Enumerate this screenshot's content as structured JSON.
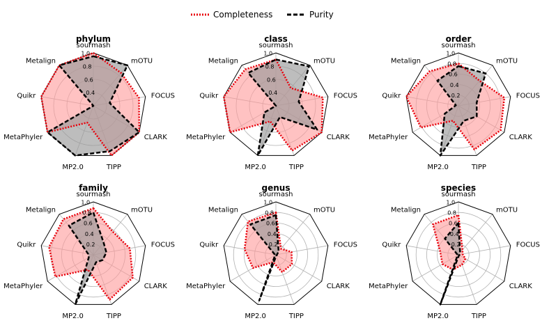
{
  "chart_data": {
    "type": "radar",
    "legend": {
      "placement": "top-center",
      "entries": [
        {
          "name": "Completeness",
          "color": "#e8000b",
          "style": "dotted"
        },
        {
          "name": "Purity",
          "color": "#000000",
          "style": "dashed"
        }
      ]
    },
    "categories": [
      "sourmash",
      "mOTU",
      "FOCUS",
      "CLARK",
      "TIPP",
      "MP2.0",
      "MetaPhyler",
      "Quikr",
      "Metalign"
    ],
    "rlim": [
      0,
      1.0
    ],
    "colors": {
      "completeness_fill": "#ff9999",
      "purity_fill": "#999999",
      "grid": "#b0b0b0",
      "frame": "#000000"
    },
    "panels": [
      {
        "title": "phylum",
        "ticks": [
          "0.4",
          "0.6",
          "0.8",
          "1.0"
        ],
        "tick_values": [
          0.4,
          0.6,
          0.8,
          1.0
        ],
        "rmin": 0.2,
        "series": [
          {
            "name": "Completeness",
            "values": [
              1.0,
              0.85,
              0.9,
              1.0,
              1.0,
              0.47,
              1.0,
              1.0,
              1.0
            ]
          },
          {
            "name": "Purity",
            "values": [
              0.95,
              1.0,
              0.45,
              1.0,
              0.93,
              1.0,
              1.0,
              0.2,
              1.0
            ]
          }
        ]
      },
      {
        "title": "class",
        "ticks": [
          "0.4",
          "0.6",
          "0.8",
          "1.0"
        ],
        "tick_values": [
          0.4,
          0.6,
          0.8,
          1.0
        ],
        "rmin": 0.2,
        "series": [
          {
            "name": "Completeness",
            "values": [
              0.9,
              0.55,
              0.92,
              1.0,
              0.92,
              0.45,
              1.0,
              1.0,
              0.92
            ]
          },
          {
            "name": "Purity",
            "values": [
              0.9,
              0.98,
              0.55,
              0.92,
              0.38,
              1.0,
              0.4,
              0.2,
              0.85
            ]
          }
        ]
      },
      {
        "title": "order",
        "ticks": [
          "0.2",
          "0.4",
          "0.6",
          "0.8",
          "1.0"
        ],
        "tick_values": [
          0.2,
          0.4,
          0.6,
          0.8,
          1.0
        ],
        "rmin": 0.0,
        "series": [
          {
            "name": "Completeness",
            "values": [
              0.8,
              0.62,
              0.88,
              0.92,
              0.88,
              0.3,
              0.82,
              1.0,
              0.85
            ]
          },
          {
            "name": "Purity",
            "values": [
              0.75,
              0.8,
              0.35,
              0.4,
              0.3,
              1.0,
              0.3,
              0.05,
              0.62
            ]
          }
        ]
      },
      {
        "title": "family",
        "ticks": [
          "0.2",
          "0.4",
          "0.6",
          "0.8",
          "1.0"
        ],
        "tick_values": [
          0.2,
          0.4,
          0.6,
          0.8,
          1.0
        ],
        "rmin": 0.0,
        "series": [
          {
            "name": "Completeness",
            "values": [
              0.88,
              0.57,
              0.7,
              0.86,
              0.9,
              0.3,
              0.83,
              0.85,
              0.88
            ]
          },
          {
            "name": "Purity",
            "values": [
              0.8,
              0.3,
              0.25,
              0.2,
              0.15,
              1.0,
              0.1,
              0.1,
              0.72
            ]
          }
        ]
      },
      {
        "title": "genus",
        "ticks": [
          "0.2",
          "0.4",
          "0.6",
          "0.8",
          "1.0"
        ],
        "tick_values": [
          0.2,
          0.4,
          0.6,
          0.8,
          1.0
        ],
        "rmin": 0.0,
        "series": [
          {
            "name": "Completeness",
            "values": [
              0.8,
              0.15,
              0.3,
              0.35,
              0.35,
              0.15,
              0.5,
              0.6,
              0.82
            ]
          },
          {
            "name": "Purity",
            "values": [
              0.75,
              0.08,
              0.02,
              0.02,
              0.02,
              0.92,
              0.02,
              0.02,
              0.75
            ]
          }
        ]
      },
      {
        "title": "species",
        "ticks": [
          "0.2",
          "0.4",
          "0.6",
          "0.8",
          "1.0"
        ],
        "tick_values": [
          0.2,
          0.4,
          0.6,
          0.8,
          1.0
        ],
        "rmin": 0.0,
        "series": [
          {
            "name": "Completeness",
            "values": [
              0.75,
              0.12,
              0.08,
              0.15,
              0.2,
              0.3,
              0.35,
              0.35,
              0.75
            ]
          },
          {
            "name": "Purity",
            "values": [
              0.6,
              0.05,
              0.02,
              0.02,
              0.02,
              1.0,
              0.02,
              0.02,
              0.4
            ]
          }
        ]
      }
    ]
  }
}
